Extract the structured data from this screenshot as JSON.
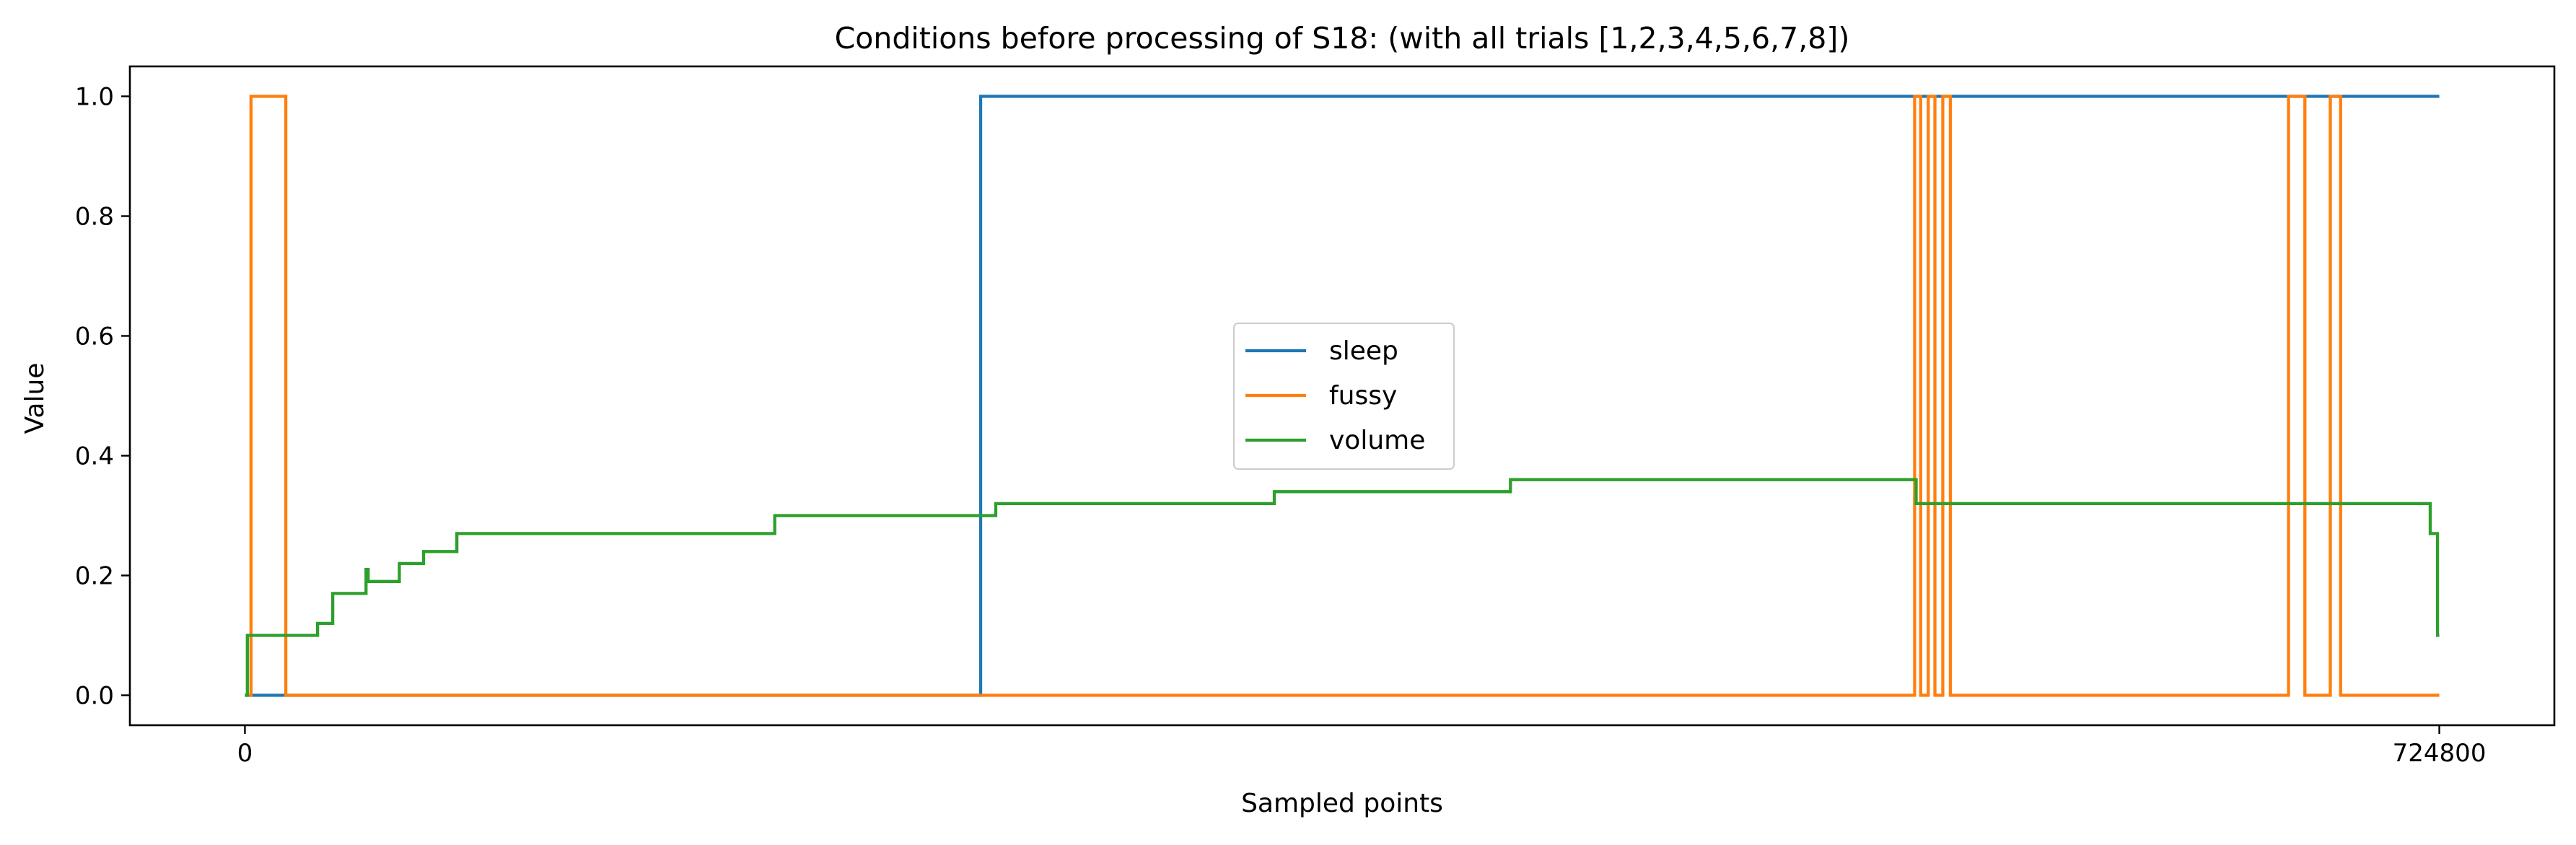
{
  "chart_data": {
    "type": "line",
    "title": "Conditions before processing of S18: (with all trials [1,2,3,4,5,6,7,8])",
    "xlabel": "Sampled points",
    "ylabel": "Value",
    "xlim": [
      -38000,
      762800
    ],
    "ylim": [
      -0.05,
      1.05
    ],
    "xticks": [
      0,
      724800
    ],
    "xtick_labels": [
      "0",
      "724800"
    ],
    "yticks": [
      0.0,
      0.2,
      0.4,
      0.6,
      0.8,
      1.0
    ],
    "ytick_labels": [
      "0.0",
      "0.2",
      "0.4",
      "0.6",
      "0.8",
      "1.0"
    ],
    "grid": false,
    "legend": {
      "placement": "center"
    },
    "series": [
      {
        "name": "sleep",
        "color": "#1f77b4",
        "steps": [
          [
            0,
            0
          ],
          [
            243000,
            1
          ],
          [
            724800,
            1
          ]
        ]
      },
      {
        "name": "fussy",
        "color": "#ff7f0e",
        "steps": [
          [
            0,
            0
          ],
          [
            2000,
            1
          ],
          [
            13500,
            0
          ],
          [
            551500,
            1
          ],
          [
            553500,
            0
          ],
          [
            556000,
            1
          ],
          [
            558200,
            0
          ],
          [
            560800,
            1
          ],
          [
            563300,
            0
          ],
          [
            675000,
            1
          ],
          [
            680400,
            0
          ],
          [
            688800,
            1
          ],
          [
            692200,
            0
          ],
          [
            724800,
            0
          ]
        ]
      },
      {
        "name": "volume",
        "color": "#2ca02c",
        "steps": [
          [
            0,
            0
          ],
          [
            800,
            0.1
          ],
          [
            24000,
            0.12
          ],
          [
            29000,
            0.17
          ],
          [
            40000,
            0.21
          ],
          [
            40700,
            0.19
          ],
          [
            51000,
            0.22
          ],
          [
            59000,
            0.24
          ],
          [
            70000,
            0.27
          ],
          [
            175000,
            0.3
          ],
          [
            248000,
            0.32
          ],
          [
            340000,
            0.34
          ],
          [
            418000,
            0.36
          ],
          [
            552000,
            0.32
          ],
          [
            721800,
            0.27
          ],
          [
            724200,
            0.1
          ]
        ],
        "end_x": 724800
      }
    ]
  }
}
